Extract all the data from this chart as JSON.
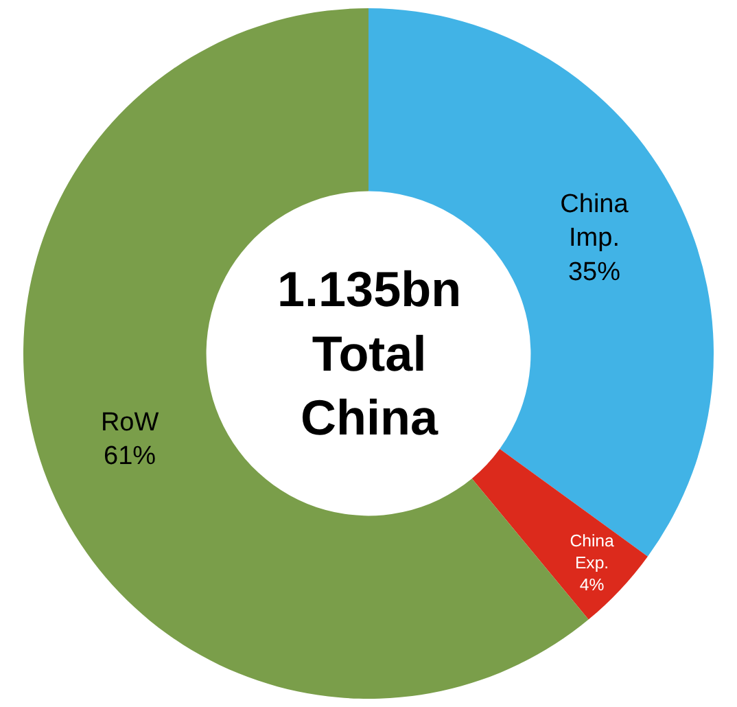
{
  "chart_data": {
    "type": "donut",
    "categories": [
      "China Imp.",
      "China Exp.",
      "RoW"
    ],
    "values": [
      35,
      4,
      61
    ],
    "value_labels": [
      "35%",
      "4%",
      "61%"
    ],
    "colors": [
      "#41b3e6",
      "#dc2a1c",
      "#7a9e4a"
    ],
    "annotations": [
      "1.135bn\nTotal\nChina"
    ],
    "legend": false
  }
}
